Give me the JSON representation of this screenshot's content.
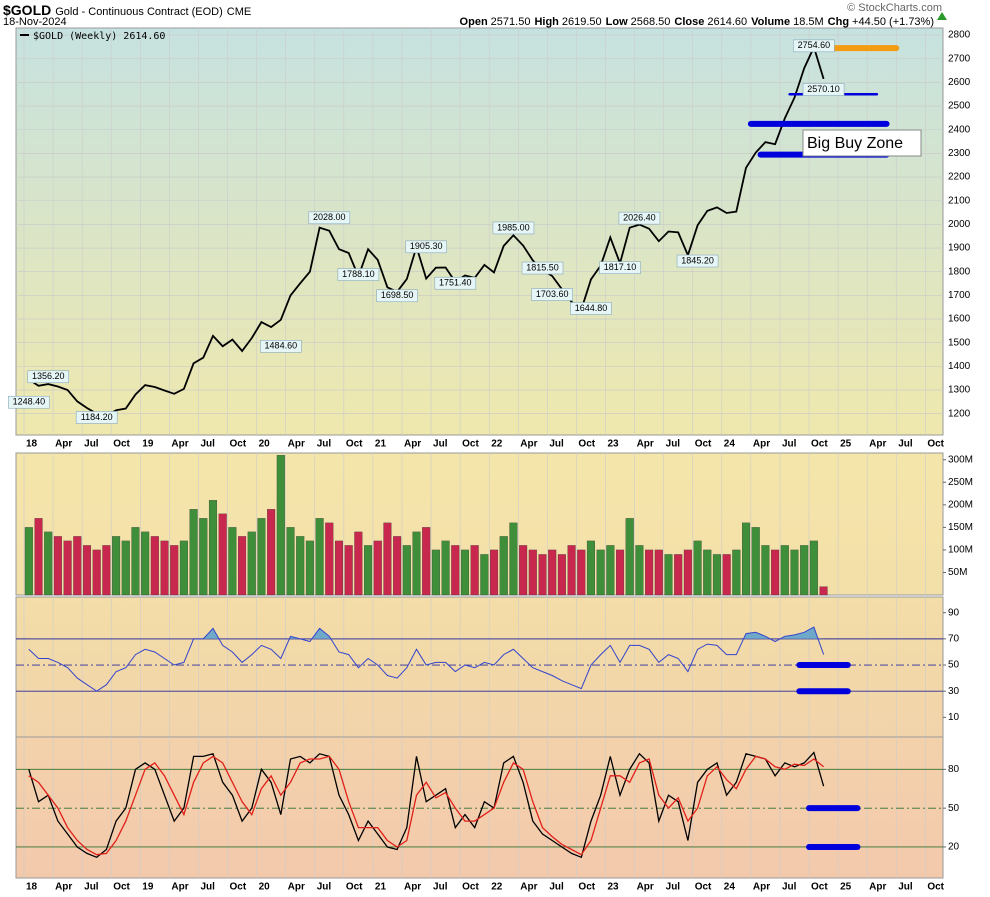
{
  "header": {
    "symbol": "$GOLD",
    "name": "Gold - Continuous Contract (EOD)",
    "exchange": "CME",
    "date": "18-Nov-2024",
    "quote": [
      {
        "label": "Open",
        "value": "2571.50"
      },
      {
        "label": "High",
        "value": "2619.50"
      },
      {
        "label": "Low",
        "value": "2568.50"
      },
      {
        "label": "Close",
        "value": "2614.60"
      },
      {
        "label": "Volume",
        "value": "18.5M"
      },
      {
        "label": "Chg",
        "value": "+44.50 (+1.73%)"
      }
    ],
    "copyright": "© StockCharts.com"
  },
  "chart_data": [
    {
      "type": "line",
      "x": [
        "2018-01",
        "2018-02",
        "2018-03",
        "2018-04",
        "2018-05",
        "2018-06",
        "2018-07",
        "2018-08",
        "2018-09",
        "2018-10",
        "2018-11",
        "2018-12",
        "2019-01",
        "2019-02",
        "2019-03",
        "2019-04",
        "2019-05",
        "2019-06",
        "2019-07",
        "2019-08",
        "2019-09",
        "2019-10",
        "2019-11",
        "2019-12",
        "2020-01",
        "2020-02",
        "2020-03",
        "2020-04",
        "2020-05",
        "2020-06",
        "2020-07",
        "2020-08",
        "2020-09",
        "2020-10",
        "2020-11",
        "2020-12",
        "2021-01",
        "2021-02",
        "2021-03",
        "2021-04",
        "2021-05",
        "2021-06",
        "2021-07",
        "2021-08",
        "2021-09",
        "2021-10",
        "2021-11",
        "2021-12",
        "2022-01",
        "2022-02",
        "2022-03",
        "2022-04",
        "2022-05",
        "2022-06",
        "2022-07",
        "2022-08",
        "2022-09",
        "2022-10",
        "2022-11",
        "2022-12",
        "2023-01",
        "2023-02",
        "2023-03",
        "2023-04",
        "2023-05",
        "2023-06",
        "2023-07",
        "2023-08",
        "2023-09",
        "2023-10",
        "2023-11",
        "2023-12",
        "2024-01",
        "2024-02",
        "2024-03",
        "2024-04",
        "2024-05",
        "2024-06",
        "2024-07",
        "2024-08",
        "2024-09",
        "2024-10",
        "2024-11"
      ],
      "series": [
        {
          "name": "$GOLD (Weekly) 2614.60",
          "color": "#000000",
          "values": [
            1345,
            1318,
            1325,
            1315,
            1300,
            1252,
            1224,
            1200,
            1192,
            1215,
            1222,
            1281,
            1321,
            1313,
            1298,
            1284,
            1305,
            1413,
            1437,
            1529,
            1485,
            1513,
            1465,
            1520,
            1587,
            1566,
            1597,
            1700,
            1751,
            1800,
            1986,
            1973,
            1895,
            1879,
            1780,
            1895,
            1850,
            1734,
            1715,
            1769,
            1905,
            1771,
            1817,
            1818,
            1757,
            1784,
            1774,
            1829,
            1797,
            1909,
            1954,
            1911,
            1848,
            1807,
            1782,
            1726,
            1672,
            1640,
            1768,
            1826,
            1945,
            1836,
            1986,
            1999,
            1982,
            1929,
            1970,
            1966,
            1870,
            1996,
            2057,
            2072,
            2048,
            2054,
            2239,
            2303,
            2348,
            2339,
            2448,
            2536,
            2660,
            2749,
            2615
          ]
        }
      ],
      "ylim": [
        1110,
        2830
      ],
      "yticks": [
        1200,
        1300,
        1400,
        1500,
        1600,
        1700,
        1800,
        1900,
        2000,
        2100,
        2200,
        2300,
        2400,
        2500,
        2600,
        2700,
        2800
      ],
      "xticks": [
        {
          "value": "2018-01",
          "label": "18"
        },
        {
          "value": "2018-04",
          "label": "Apr"
        },
        {
          "value": "2018-07",
          "label": "Jul"
        },
        {
          "value": "2018-10",
          "label": "Oct"
        },
        {
          "value": "2019-01",
          "label": "19"
        },
        {
          "value": "2019-04",
          "label": "Apr"
        },
        {
          "value": "2019-07",
          "label": "Jul"
        },
        {
          "value": "2019-10",
          "label": "Oct"
        },
        {
          "value": "2020-01",
          "label": "20"
        },
        {
          "value": "2020-04",
          "label": "Apr"
        },
        {
          "value": "2020-07",
          "label": "Jul"
        },
        {
          "value": "2020-10",
          "label": "Oct"
        },
        {
          "value": "2021-01",
          "label": "21"
        },
        {
          "value": "2021-04",
          "label": "Apr"
        },
        {
          "value": "2021-07",
          "label": "Jul"
        },
        {
          "value": "2021-10",
          "label": "Oct"
        },
        {
          "value": "2022-01",
          "label": "22"
        },
        {
          "value": "2022-04",
          "label": "Apr"
        },
        {
          "value": "2022-07",
          "label": "Jul"
        },
        {
          "value": "2022-10",
          "label": "Oct"
        },
        {
          "value": "2023-01",
          "label": "23"
        },
        {
          "value": "2023-04",
          "label": "Apr"
        },
        {
          "value": "2023-07",
          "label": "Jul"
        },
        {
          "value": "2023-10",
          "label": "Oct"
        },
        {
          "value": "2024-01",
          "label": "24"
        },
        {
          "value": "2024-04",
          "label": "Apr"
        },
        {
          "value": "2024-07",
          "label": "Jul"
        },
        {
          "value": "2024-10",
          "label": "Oct"
        },
        {
          "value": "2025-01",
          "label": "25"
        },
        {
          "value": "2025-04",
          "label": "Apr"
        },
        {
          "value": "2025-07",
          "label": "Jul"
        },
        {
          "value": "2025-10",
          "label": "Oct"
        }
      ],
      "grid": true,
      "annotations": [
        {
          "x": "2018-01",
          "value": 1248.4,
          "label": "1248.40"
        },
        {
          "x": "2018-03",
          "value": 1356.2,
          "label": "1356.20"
        },
        {
          "x": "2018-08",
          "value": 1184.2,
          "label": "1184.20"
        },
        {
          "x": "2020-03",
          "value": 1484.6,
          "label": "1484.60"
        },
        {
          "x": "2020-08",
          "value": 2028,
          "label": "2028.00"
        },
        {
          "x": "2020-11",
          "value": 1788.1,
          "label": "1788.10"
        },
        {
          "x": "2021-03",
          "value": 1698.5,
          "label": "1698.50"
        },
        {
          "x": "2021-06",
          "value": 1905.3,
          "label": "1905.30"
        },
        {
          "x": "2021-09",
          "value": 1751.4,
          "label": "1751.40"
        },
        {
          "x": "2022-03",
          "value": 1985,
          "label": "1985.00"
        },
        {
          "x": "2022-06",
          "value": 1815.5,
          "label": "1815.50"
        },
        {
          "x": "2022-07",
          "value": 1703.6,
          "label": "1703.60"
        },
        {
          "x": "2022-11",
          "value": 1644.8,
          "label": "1644.80"
        },
        {
          "x": "2023-04",
          "value": 2026.4,
          "label": "2026.40"
        },
        {
          "x": "2023-02",
          "value": 1817.1,
          "label": "1817.10"
        },
        {
          "x": "2023-10",
          "value": 1845.2,
          "label": "1845.20"
        },
        {
          "x": "2024-10",
          "value": 2754.6,
          "label": "2754.60"
        },
        {
          "x": "2024-11",
          "value": 2570.1,
          "label": "2570.10"
        }
      ],
      "levels": [
        {
          "value": 2745,
          "x": [
            "2024-10",
            "2025-07"
          ],
          "color": "#f39c12",
          "weight": "heavy"
        },
        {
          "value": 2550,
          "x": [
            "2024-08",
            "2025-05"
          ],
          "color": "#0000dd",
          "weight": "light"
        },
        {
          "value": 2425,
          "x": [
            "2024-04",
            "2025-06"
          ],
          "color": "#0000dd",
          "weight": "heavy"
        },
        {
          "value": 2295,
          "x": [
            "2024-05",
            "2025-06"
          ],
          "color": "#0000dd",
          "weight": "heavy"
        }
      ],
      "callout": "Big Buy Zone"
    },
    {
      "type": "bar",
      "values": [
        150,
        170,
        140,
        130,
        120,
        130,
        110,
        100,
        110,
        130,
        120,
        150,
        140,
        130,
        120,
        110,
        120,
        190,
        170,
        210,
        180,
        150,
        130,
        140,
        170,
        190,
        310,
        150,
        130,
        120,
        170,
        160,
        120,
        110,
        140,
        110,
        120,
        160,
        130,
        110,
        140,
        150,
        100,
        120,
        110,
        100,
        110,
        90,
        100,
        130,
        160,
        110,
        100,
        90,
        100,
        90,
        110,
        100,
        120,
        100,
        110,
        100,
        170,
        110,
        100,
        100,
        90,
        90,
        100,
        120,
        100,
        90,
        90,
        100,
        160,
        150,
        110,
        100,
        110,
        100,
        110,
        120,
        18.5
      ],
      "up_color": "#3f8f3a",
      "down_color": "#c8284e",
      "ylim": [
        0,
        315
      ],
      "yticks": [
        {
          "value": 300,
          "label": "300M"
        },
        {
          "value": 250,
          "label": "250M"
        },
        {
          "value": 200,
          "label": "200M"
        },
        {
          "value": 150,
          "label": "150M"
        },
        {
          "value": 100,
          "label": "100M"
        },
        {
          "value": 50,
          "label": "50M"
        }
      ]
    },
    {
      "type": "line",
      "values": [
        62,
        55,
        55,
        52,
        48,
        40,
        35,
        30,
        35,
        45,
        48,
        58,
        62,
        60,
        55,
        50,
        52,
        70,
        70,
        78,
        65,
        60,
        52,
        58,
        65,
        62,
        55,
        72,
        70,
        68,
        78,
        72,
        60,
        58,
        48,
        55,
        50,
        42,
        40,
        48,
        62,
        50,
        52,
        52,
        45,
        50,
        48,
        52,
        50,
        58,
        62,
        55,
        48,
        45,
        42,
        38,
        35,
        32,
        50,
        58,
        65,
        52,
        65,
        65,
        62,
        52,
        58,
        55,
        45,
        62,
        66,
        65,
        58,
        58,
        74,
        75,
        72,
        68,
        72,
        73,
        75,
        79,
        58
      ],
      "color": "#3344cc",
      "fill_color": "#6fa8c8",
      "fill_above": 70,
      "ylim": [
        -5,
        102
      ],
      "yticks": [
        90,
        70,
        50,
        30,
        10
      ],
      "ref_lines": [
        {
          "value": 70,
          "style": "solid"
        },
        {
          "value": 50,
          "style": "dashdot"
        },
        {
          "value": 30,
          "style": "solid"
        }
      ],
      "ref_color": "#2b2b9a",
      "levels": [
        {
          "value": 50,
          "x": [
            "2024-09",
            "2025-02"
          ],
          "color": "#0000dd",
          "weight": "heavy"
        },
        {
          "value": 30,
          "x": [
            "2024-09",
            "2025-02"
          ],
          "color": "#0000dd",
          "weight": "heavy"
        }
      ]
    },
    {
      "type": "line",
      "series": [
        {
          "color": "#000000",
          "values": [
            80,
            55,
            60,
            40,
            30,
            20,
            15,
            12,
            18,
            40,
            50,
            80,
            85,
            80,
            60,
            40,
            50,
            90,
            90,
            92,
            70,
            60,
            40,
            50,
            80,
            70,
            45,
            88,
            90,
            85,
            92,
            90,
            60,
            45,
            25,
            40,
            30,
            20,
            18,
            35,
            90,
            55,
            60,
            65,
            35,
            45,
            35,
            55,
            50,
            85,
            90,
            70,
            40,
            30,
            25,
            20,
            15,
            12,
            40,
            60,
            90,
            60,
            80,
            92,
            85,
            40,
            60,
            55,
            25,
            70,
            80,
            85,
            60,
            70,
            92,
            90,
            88,
            75,
            85,
            82,
            85,
            93,
            67
          ]
        },
        {
          "color": "#e0201a",
          "values": [
            75,
            70,
            60,
            50,
            35,
            25,
            18,
            14,
            15,
            25,
            40,
            60,
            80,
            85,
            75,
            60,
            45,
            70,
            85,
            90,
            85,
            70,
            55,
            45,
            65,
            75,
            60,
            70,
            85,
            88,
            88,
            90,
            80,
            55,
            35,
            35,
            35,
            25,
            20,
            25,
            60,
            70,
            58,
            62,
            50,
            40,
            40,
            45,
            50,
            70,
            85,
            80,
            55,
            35,
            28,
            22,
            18,
            14,
            25,
            50,
            75,
            75,
            70,
            85,
            88,
            60,
            50,
            58,
            40,
            50,
            75,
            82,
            72,
            65,
            80,
            90,
            88,
            82,
            80,
            84,
            83,
            88,
            82
          ]
        }
      ],
      "ylim": [
        -4,
        105
      ],
      "yticks": [
        80,
        50,
        20
      ],
      "ref_lines": [
        {
          "value": 80,
          "style": "solid"
        },
        {
          "value": 50,
          "style": "dashdot"
        },
        {
          "value": 20,
          "style": "solid"
        }
      ],
      "ref_color": "#2f6f2f",
      "levels": [
        {
          "value": 50,
          "x": [
            "2024-10",
            "2025-03"
          ],
          "color": "#0000dd",
          "weight": "heavy"
        },
        {
          "value": 20,
          "x": [
            "2024-10",
            "2025-03"
          ],
          "color": "#0000dd",
          "weight": "heavy"
        }
      ]
    }
  ]
}
